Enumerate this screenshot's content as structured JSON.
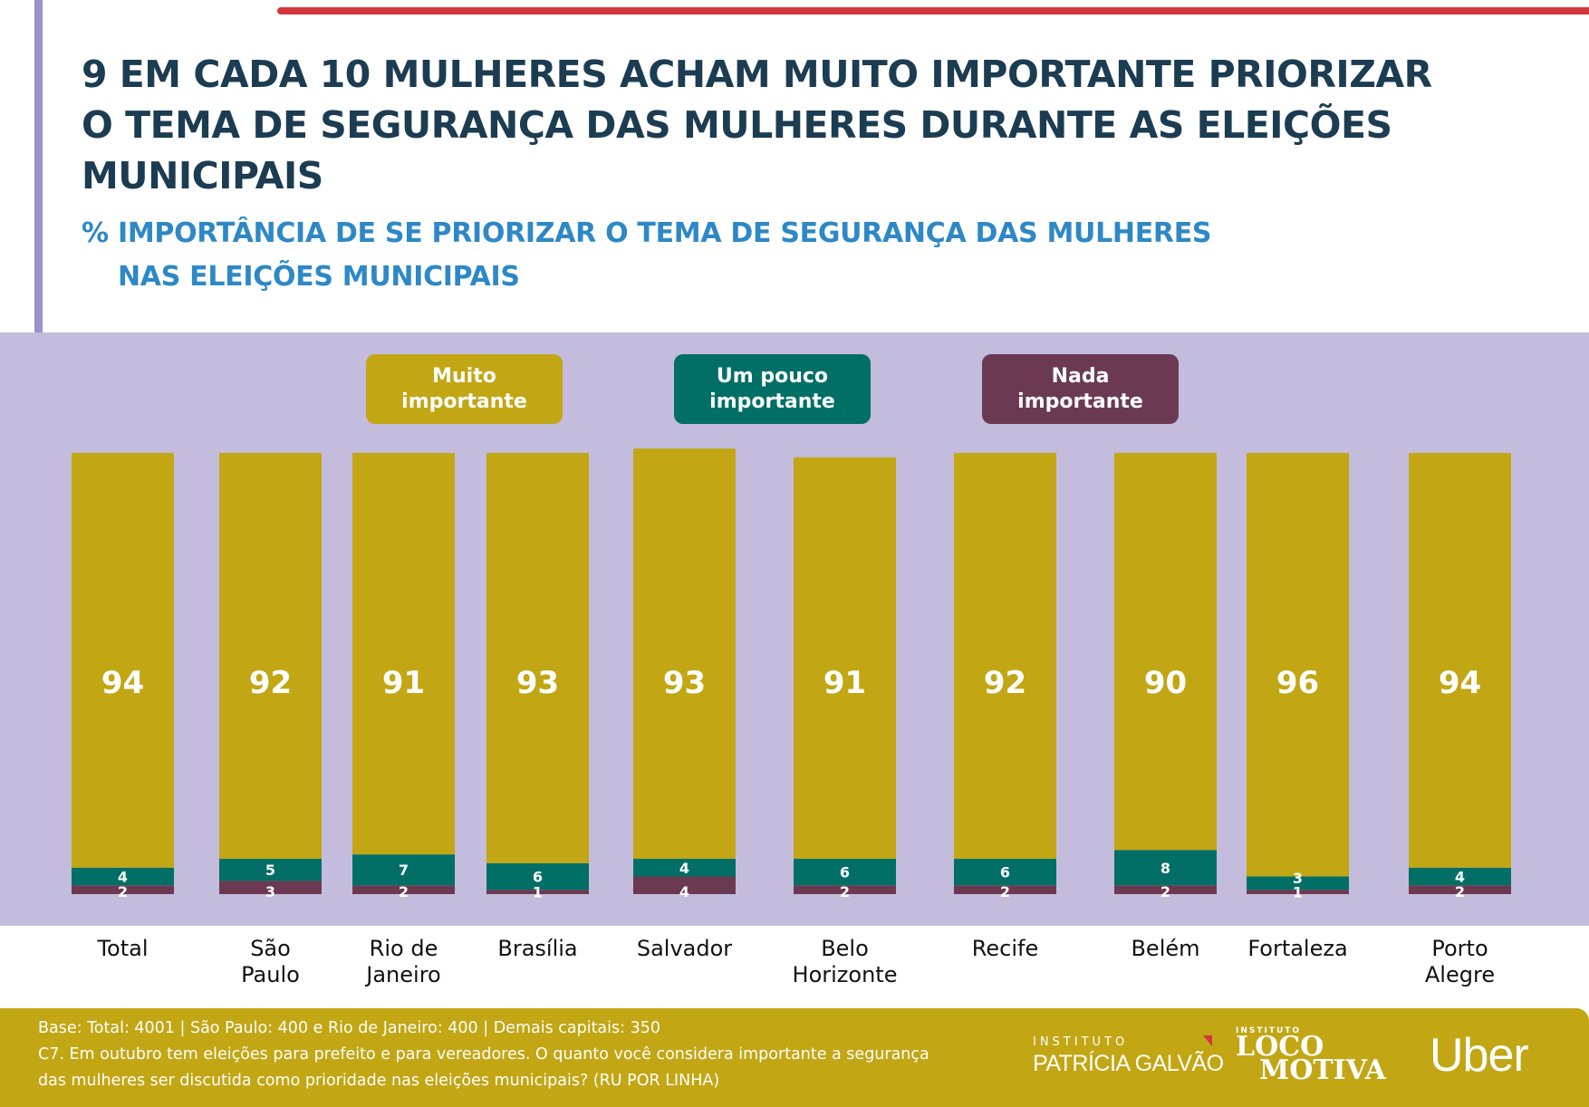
{
  "header": {
    "title_lines": [
      "9 EM CADA 10 MULHERES ACHAM MUITO IMPORTANTE PRIORIZAR",
      "O TEMA DE SEGURANÇA DAS MULHERES DURANTE AS ELEIÇÕES",
      "MUNICIPAIS"
    ],
    "subtitle_prefix": "%",
    "subtitle_lines": [
      "IMPORTÂNCIA DE SE PRIORIZAR O TEMA DE SEGURANÇA DAS MULHERES",
      "NAS ELEIÇÕES MUNICIPAIS"
    ]
  },
  "legend": [
    {
      "line1": "Muito",
      "line2": "importante",
      "color": "#c2a614"
    },
    {
      "line1": "Um pouco",
      "line2": "importante",
      "color": "#016f66"
    },
    {
      "line1": "Nada",
      "line2": "importante",
      "color": "#6b3a52"
    }
  ],
  "chart_data": {
    "type": "bar",
    "stacked": true,
    "title": "% IMPORTÂNCIA DE SE PRIORIZAR O TEMA DE SEGURANÇA DAS MULHERES NAS ELEIÇÕES MUNICIPAIS",
    "xlabel": "",
    "ylabel": "",
    "ylim": [
      0,
      100
    ],
    "grid": false,
    "legend_position": "top",
    "categories": [
      [
        "Total"
      ],
      [
        "São",
        "Paulo"
      ],
      [
        "Rio de",
        "Janeiro"
      ],
      [
        "Brasília"
      ],
      [
        "Salvador"
      ],
      [
        "Belo",
        "Horizonte"
      ],
      [
        "Recife"
      ],
      [
        "Belém"
      ],
      [
        "Fortaleza"
      ],
      [
        "Porto",
        "Alegre"
      ]
    ],
    "series": [
      {
        "name": "Nada importante",
        "color": "#6b3a52",
        "values": [
          2,
          3,
          2,
          1,
          4,
          2,
          2,
          2,
          1,
          2
        ]
      },
      {
        "name": "Um pouco importante",
        "color": "#016f66",
        "values": [
          4,
          5,
          7,
          6,
          4,
          6,
          6,
          8,
          3,
          4
        ]
      },
      {
        "name": "Muito importante",
        "color": "#c2a614",
        "values": [
          94,
          92,
          91,
          93,
          93,
          91,
          92,
          90,
          96,
          94
        ]
      }
    ]
  },
  "footer": {
    "lines": [
      "Base: Total: 4001 | São Paulo: 400 e Rio de Janeiro: 400 | Demais capitais: 350",
      "C7. Em outubro tem eleições para prefeito e para vereadores. O quanto você considera importante a segurança",
      "das mulheres ser discutida como prioridade nas eleições municipais? (RU POR LINHA)"
    ],
    "logos": {
      "patricia_galvao_small": "INSTITUTO",
      "patricia_galvao_big": "PATRÍCIA GALVÃO",
      "locomotiva_small": "INSTITUTO",
      "locomotiva_line1": "LOCO",
      "locomotiva_line2": "MOTIVA",
      "uber": "Uber"
    }
  }
}
